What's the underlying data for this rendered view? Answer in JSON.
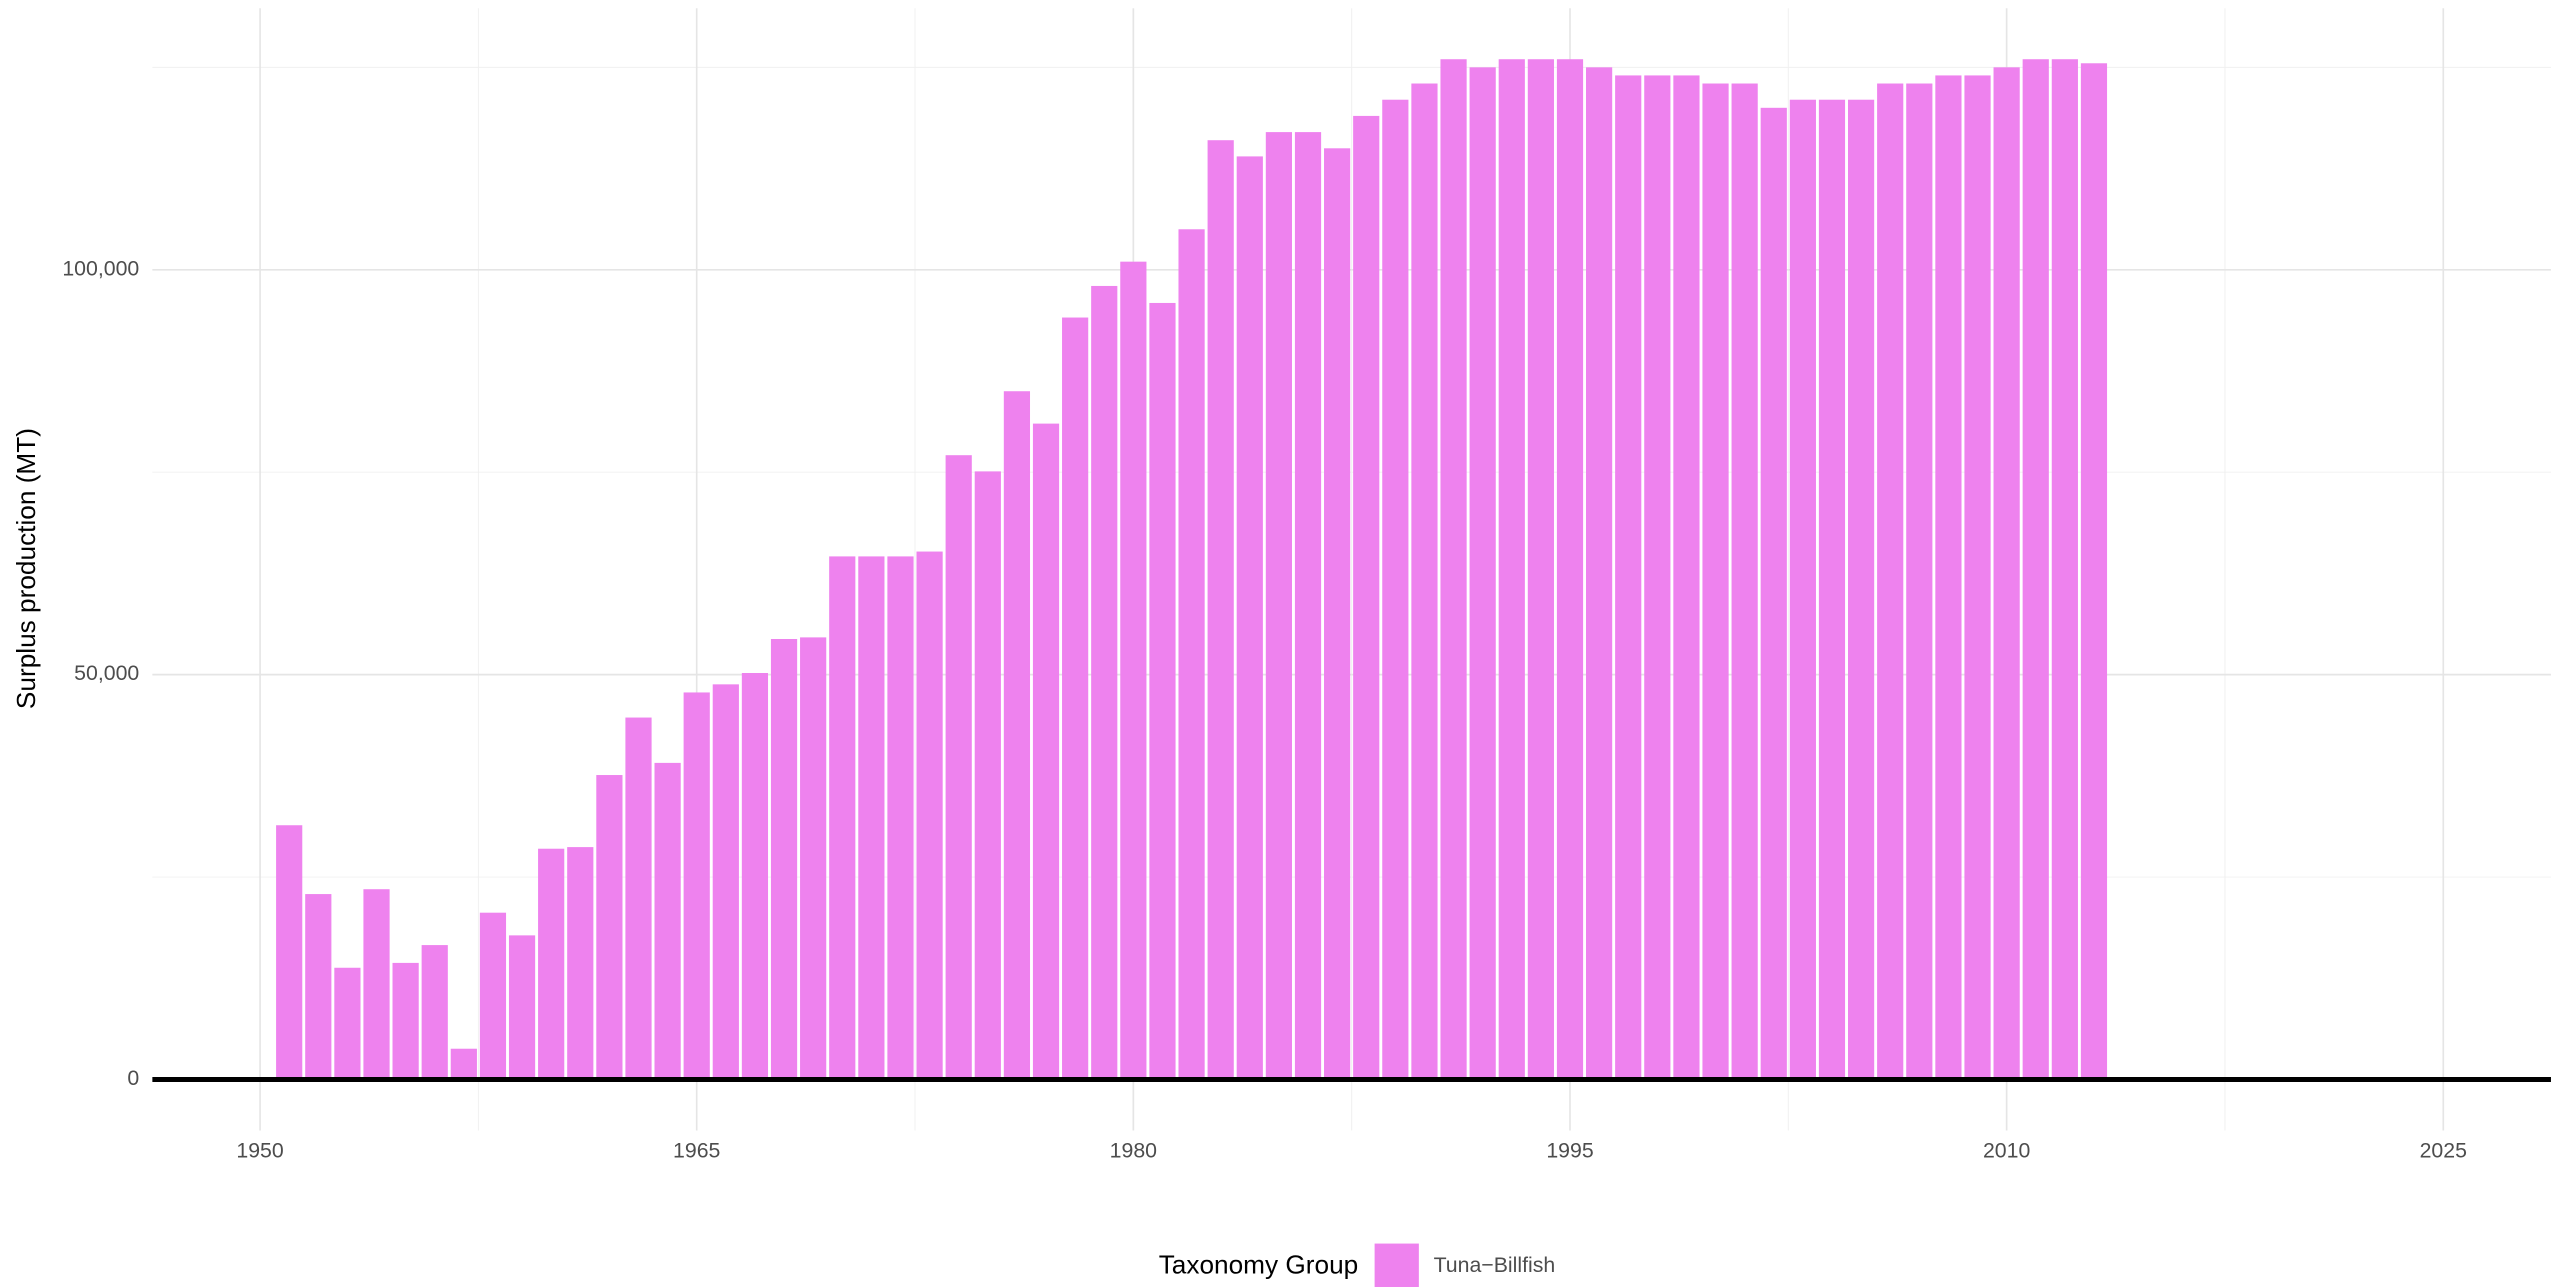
{
  "chart_data": {
    "type": "bar",
    "y_label": "Surplus production (MT)",
    "legend_title": "Taxonomy Group",
    "legend_position": "bottom",
    "grid": true,
    "x": [
      1951,
      1952,
      1953,
      1954,
      1955,
      1956,
      1957,
      1958,
      1959,
      1960,
      1961,
      1962,
      1963,
      1964,
      1965,
      1966,
      1967,
      1968,
      1969,
      1970,
      1971,
      1972,
      1973,
      1974,
      1975,
      1976,
      1977,
      1978,
      1979,
      1980,
      1981,
      1982,
      1983,
      1984,
      1985,
      1986,
      1987,
      1988,
      1989,
      1990,
      1991,
      1992,
      1993,
      1994,
      1995,
      1996,
      1997,
      1998,
      1999,
      2000,
      2001,
      2002,
      2003,
      2004,
      2005,
      2006,
      2007,
      2008,
      2009,
      2010,
      2011,
      2012,
      2013
    ],
    "series": [
      {
        "name": "Tuna−Billfish",
        "color": "#EE82EE",
        "values": [
          31400,
          22900,
          13800,
          23500,
          14400,
          16600,
          3800,
          20600,
          17800,
          28500,
          28700,
          37600,
          44700,
          39100,
          47800,
          48800,
          50200,
          54400,
          54600,
          64600,
          64600,
          64600,
          65200,
          77100,
          75100,
          85000,
          81000,
          94100,
          98000,
          101000,
          95900,
          105000,
          116000,
          114000,
          117000,
          117000,
          115000,
          119000,
          121000,
          123000,
          126000,
          125000,
          126000,
          126000,
          126000,
          125000,
          124000,
          124000,
          124000,
          123000,
          123000,
          120000,
          121000,
          121000,
          121000,
          123000,
          123000,
          124000,
          124000,
          125000,
          126000,
          126000,
          125500
        ]
      }
    ],
    "xlim": [
      1946.3,
      2028.7
    ],
    "xticks": [
      1950,
      1965,
      1980,
      1995,
      2010,
      2025
    ],
    "x_minor_ticks": [
      1957.5,
      1972.5,
      1987.5,
      2002.5,
      2017.5
    ],
    "ylim": [
      -6300,
      132300
    ],
    "yticks": [
      0,
      {
        "value": 50000,
        "label": "50,000"
      },
      {
        "value": 100000,
        "label": "100,000"
      }
    ],
    "y_minor_ticks": [
      25000,
      75000,
      125000
    ]
  }
}
